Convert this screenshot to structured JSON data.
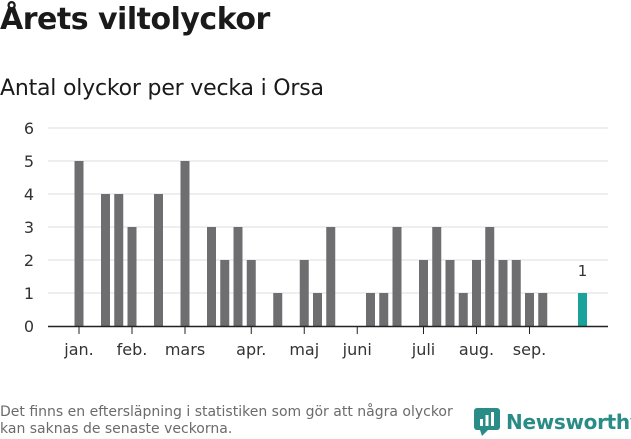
{
  "title": "Årets viltolyckor",
  "footnote": "Det finns en eftersläpning i statistiken som gör att några olyckor kan saknas de senaste veckorna.",
  "brand": {
    "name": "Newsworthy",
    "icon": "newsworthy-logo-icon"
  },
  "colors": {
    "bar": "#6e6e70",
    "highlight": "#1aa39b",
    "grid": "#dddddd",
    "axis": "#222222",
    "brand": "#2a8c86"
  },
  "chart_data": {
    "type": "bar",
    "title": "Antal olyckor per vecka i Orsa",
    "xlabel": "",
    "ylabel": "",
    "ylim": [
      0,
      6
    ],
    "yticks": [
      "0",
      "1",
      "2",
      "3",
      "4",
      "5",
      "6"
    ],
    "grid": true,
    "x_tick_labels": [
      "jan.",
      "feb.",
      "mars",
      "apr.",
      "maj",
      "juni",
      "juli",
      "aug.",
      "sep."
    ],
    "x_tick_weeks": [
      1,
      5,
      9,
      14,
      18,
      22,
      27,
      31,
      35
    ],
    "weeks": [
      1,
      2,
      3,
      4,
      5,
      6,
      7,
      8,
      9,
      10,
      11,
      12,
      13,
      14,
      15,
      16,
      17,
      18,
      19,
      20,
      21,
      22,
      23,
      24,
      25,
      26,
      27,
      28,
      29,
      30,
      31,
      32,
      33,
      34,
      35,
      36,
      37,
      38,
      39
    ],
    "values": [
      5,
      0,
      4,
      4,
      3,
      0,
      4,
      0,
      5,
      0,
      3,
      2,
      3,
      2,
      0,
      1,
      0,
      2,
      1,
      3,
      0,
      0,
      1,
      1,
      3,
      0,
      2,
      3,
      2,
      1,
      2,
      3,
      2,
      2,
      1,
      1,
      0,
      0,
      1
    ],
    "highlight_week": 39,
    "highlight_label": "1"
  }
}
